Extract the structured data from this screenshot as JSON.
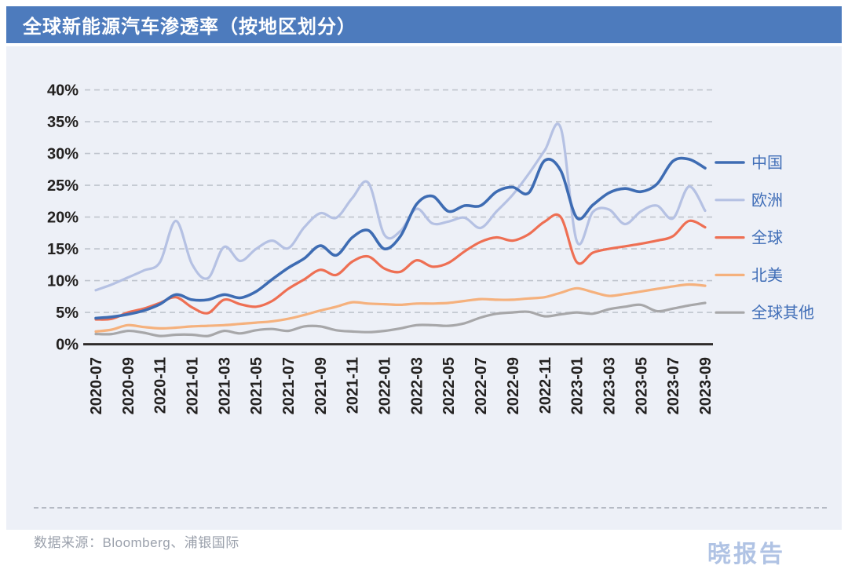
{
  "header": {
    "title": "全球新能源汽车渗透率（按地区划分）",
    "bg_color": "#4d7bbd",
    "text_color": "#ffffff"
  },
  "chart_data": {
    "type": "line",
    "title": "全球新能源汽车渗透率（按地区划分）",
    "xlabel": "",
    "ylabel": "",
    "ylim": [
      0,
      40
    ],
    "ytick_step": 5,
    "ytick_suffix": "%",
    "grid": "horizontal-dashed",
    "legend_position": "right",
    "x_tick_every": 2,
    "x": [
      "2020-07",
      "2020-08",
      "2020-09",
      "2020-10",
      "2020-11",
      "2020-12",
      "2021-01",
      "2021-02",
      "2021-03",
      "2021-04",
      "2021-05",
      "2021-06",
      "2021-07",
      "2021-08",
      "2021-09",
      "2021-10",
      "2021-11",
      "2021-12",
      "2022-01",
      "2022-02",
      "2022-03",
      "2022-04",
      "2022-05",
      "2022-06",
      "2022-07",
      "2022-08",
      "2022-09",
      "2022-10",
      "2022-11",
      "2022-12",
      "2023-01",
      "2023-02",
      "2023-03",
      "2023-04",
      "2023-05",
      "2023-06",
      "2023-07",
      "2023-08",
      "2023-09"
    ],
    "series": [
      {
        "name": "中国",
        "key": "china",
        "color": "#3e6cb3",
        "width": 3.6,
        "values": [
          4.1,
          4.3,
          4.7,
          5.3,
          6.3,
          7.8,
          7.0,
          7.0,
          7.8,
          7.3,
          8.3,
          10.2,
          12.0,
          13.5,
          15.5,
          14.0,
          16.8,
          17.9,
          15.0,
          17.0,
          22.0,
          23.3,
          20.9,
          21.8,
          21.8,
          24.0,
          24.7,
          23.8,
          28.9,
          27.3,
          19.9,
          21.9,
          23.8,
          24.5,
          24.0,
          25.2,
          28.8,
          29.1,
          27.7
        ]
      },
      {
        "name": "欧洲",
        "key": "europe",
        "color": "#b5c1e3",
        "width": 3.2,
        "values": [
          8.5,
          9.4,
          10.5,
          11.6,
          12.9,
          19.4,
          12.6,
          10.4,
          15.3,
          13.1,
          15.0,
          16.3,
          15.1,
          18.4,
          20.6,
          19.9,
          23.0,
          25.4,
          17.2,
          17.8,
          21.3,
          19.0,
          19.3,
          19.9,
          18.3,
          20.9,
          23.5,
          26.8,
          30.5,
          34.0,
          16.2,
          20.8,
          21.2,
          18.9,
          20.9,
          21.8,
          19.8,
          24.8,
          21.0
        ]
      },
      {
        "name": "全球",
        "key": "global",
        "color": "#ee6f53",
        "width": 3.2,
        "values": [
          3.9,
          4.0,
          5.0,
          5.6,
          6.5,
          7.4,
          5.8,
          4.9,
          7.0,
          6.3,
          5.9,
          6.8,
          8.7,
          10.2,
          11.7,
          10.9,
          13.0,
          13.8,
          11.9,
          11.4,
          13.2,
          12.2,
          12.8,
          14.6,
          16.1,
          16.8,
          16.3,
          17.3,
          19.3,
          20.0,
          12.9,
          14.4,
          15.0,
          15.4,
          15.8,
          16.3,
          17.0,
          19.4,
          18.4
        ]
      },
      {
        "name": "北美",
        "key": "north-america",
        "color": "#f5b17d",
        "width": 3.2,
        "values": [
          2.0,
          2.3,
          3.0,
          2.7,
          2.5,
          2.6,
          2.8,
          2.9,
          3.0,
          3.2,
          3.4,
          3.6,
          4.0,
          4.6,
          5.3,
          5.9,
          6.6,
          6.4,
          6.3,
          6.2,
          6.4,
          6.4,
          6.5,
          6.8,
          7.1,
          7.0,
          7.0,
          7.2,
          7.4,
          8.1,
          8.8,
          8.2,
          7.6,
          7.9,
          8.3,
          8.7,
          9.1,
          9.4,
          9.2
        ]
      },
      {
        "name": "全球其他",
        "key": "rest-of-world",
        "color": "#a7a7a9",
        "width": 3.2,
        "values": [
          1.6,
          1.6,
          2.1,
          1.8,
          1.3,
          1.5,
          1.5,
          1.3,
          2.1,
          1.7,
          2.2,
          2.4,
          2.1,
          2.8,
          2.8,
          2.2,
          2.0,
          1.9,
          2.1,
          2.5,
          3.0,
          3.0,
          2.9,
          3.3,
          4.2,
          4.8,
          5.0,
          5.1,
          4.4,
          4.7,
          5.0,
          4.8,
          5.5,
          5.9,
          6.2,
          5.2,
          5.6,
          6.1,
          6.5
        ]
      }
    ],
    "style": {
      "axis_color": "#2f2b2b",
      "grid_color": "#bfc4cd",
      "tick_label_color": "#232120",
      "legend_text_color": "#3f6db7",
      "plot_bg": "#edf0f7"
    }
  },
  "footer": {
    "source": "数据来源：Bloomberg、浦银国际",
    "logo": "晓报告"
  }
}
